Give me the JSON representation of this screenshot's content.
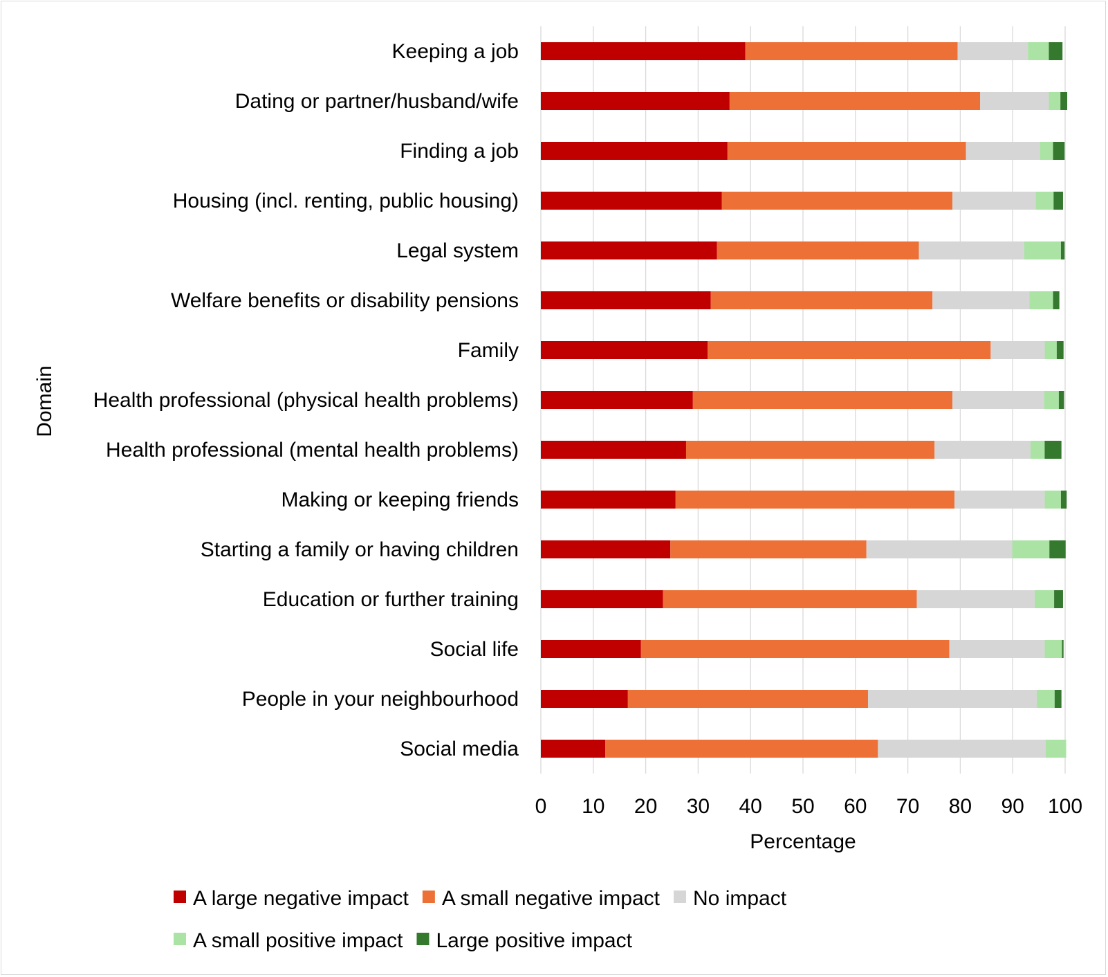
{
  "chart_data": {
    "type": "bar",
    "orientation": "horizontal",
    "stacked": true,
    "xlabel": "Percentage",
    "ylabel": "Domain",
    "xlim": [
      0,
      100
    ],
    "xticks": [
      "0",
      "10",
      "20",
      "30",
      "40",
      "50",
      "60",
      "70",
      "80",
      "90",
      "100"
    ],
    "grid": true,
    "legend_position": "bottom",
    "categories": [
      "Keeping a job",
      "Dating or partner/husband/wife",
      "Finding a job",
      "Housing (incl. renting, public housing)",
      "Legal system",
      "Welfare benefits or disability pensions",
      "Family",
      "Health professional (physical health problems)",
      "Health professional (mental health problems)",
      "Making or keeping friends",
      "Starting a family or having children",
      "Education or further training",
      "Social life",
      "People in your neighbourhood",
      "Social media"
    ],
    "series": [
      {
        "name": "A large negative impact",
        "color": "#c00000",
        "values": [
          39,
          36,
          35.6,
          34.5,
          33.6,
          32.4,
          31.8,
          29,
          27.7,
          25.7,
          24.7,
          23.3,
          19.1,
          16.6,
          12.3
        ]
      },
      {
        "name": "A small negative impact",
        "color": "#ed7137",
        "values": [
          40.5,
          47.8,
          45.5,
          44,
          38.5,
          42.3,
          54,
          49.5,
          47.4,
          53.2,
          37.4,
          48.4,
          58.8,
          45.8,
          52
        ]
      },
      {
        "name": "No impact",
        "color": "#d6d6d6",
        "values": [
          13.4,
          13.1,
          14.1,
          15.9,
          20.1,
          18.5,
          10.3,
          17.5,
          18.3,
          17.2,
          27.8,
          22.5,
          18.2,
          32.2,
          32
        ]
      },
      {
        "name": "A small positive impact",
        "color": "#abe3a5",
        "values": [
          4,
          2.2,
          2.5,
          3.4,
          7,
          4.5,
          2.3,
          2.8,
          2.7,
          3.1,
          7.1,
          3.7,
          3.3,
          3.4,
          3.9
        ]
      },
      {
        "name": "Large positive impact",
        "color": "#35792e",
        "values": [
          2.6,
          1.3,
          2.2,
          1.8,
          0.7,
          1.2,
          1.3,
          1,
          3.2,
          1.1,
          3.1,
          1.7,
          0.3,
          1.3,
          0
        ]
      }
    ]
  }
}
